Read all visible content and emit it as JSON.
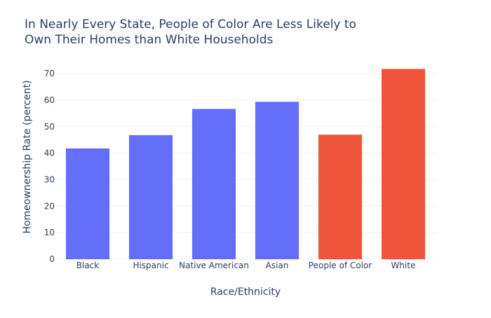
{
  "chart_data": {
    "type": "bar",
    "title_lines": [
      "In Nearly Every State, People of Color Are Less Likely to",
      "Own Their Homes than White Households"
    ],
    "xlabel": "Race/Ethnicity",
    "ylabel": "Homeownership Rate (percent)",
    "categories": [
      "Black",
      "Hispanic",
      "Native American",
      "Asian",
      "People of Color",
      "White"
    ],
    "values": [
      41.8,
      46.8,
      56.7,
      59.4,
      47.0,
      71.8
    ],
    "bar_colors": [
      "#636efa",
      "#636efa",
      "#636efa",
      "#636efa",
      "#ef553b",
      "#ef553b"
    ],
    "ylim": [
      0,
      75.6
    ],
    "yticks": [
      0,
      10,
      20,
      30,
      40,
      50,
      60,
      70
    ],
    "grid": true
  },
  "colors": {
    "title": "#2a3f5f",
    "axis_text": "#2a3f5f",
    "grid": "#ebf0f8",
    "background": "#ffffff"
  }
}
